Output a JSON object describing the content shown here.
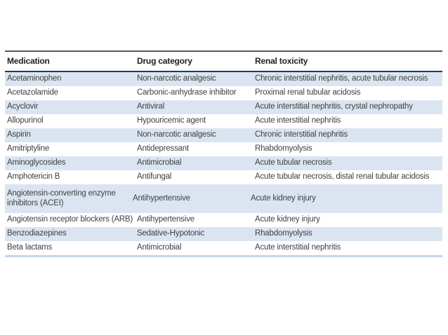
{
  "table": {
    "columns": [
      {
        "label": "Medication"
      },
      {
        "label": "Drug category"
      },
      {
        "label": "Renal toxicity"
      }
    ],
    "rows": [
      {
        "medication": "Acetaminophen",
        "category": "Non-narcotic analgesic",
        "toxicity": "Chronic interstitial nephritis, acute tubular necrosis"
      },
      {
        "medication": "Acetazolamide",
        "category": "Carbonic-anhydrase inhibitor",
        "toxicity": "Proximal renal tubular acidosis"
      },
      {
        "medication": "Acyclovir",
        "category": "Antiviral",
        "toxicity": "Acute interstitial nephritis, crystal nephropathy"
      },
      {
        "medication": "Allopurinol",
        "category": "Hypouricemic agent",
        "toxicity": "Acute interstitial nephritis"
      },
      {
        "medication": "Aspirin",
        "category": "Non-narcotic analgesic",
        "toxicity": "Chronic interstitial nephritis"
      },
      {
        "medication": "Amitriptyline",
        "category": "Antidepressant",
        "toxicity": "Rhabdomyolysis"
      },
      {
        "medication": "Aminoglycosides",
        "category": "Antimicrobial",
        "toxicity": "Acute tubular necrosis"
      },
      {
        "medication": "Amphotericin B",
        "category": "Antifungal",
        "toxicity": "Acute tubular necrosis, distal renal tubular acidosis"
      },
      {
        "medication": "Angiotensin-converting enzyme inhibitors (ACEI)",
        "category": "Antihypertensive",
        "toxicity": "Acute kidney injury"
      },
      {
        "medication": "Angiotensin receptor blockers (ARB)",
        "category": "Antihypertensive",
        "toxicity": "Acute kidney injury"
      },
      {
        "medication": "Benzodiazepines",
        "category": "Sedative-Hypotonic",
        "toxicity": "Rhabdomyolysis"
      },
      {
        "medication": "Beta lactams",
        "category": "Antimicrobial",
        "toxicity": "Acute interstitial nephritis"
      }
    ],
    "colors": {
      "row_alt": "#dbe5f1",
      "header_rule": "#203a5c",
      "top_rule": "#595959",
      "bottom_rule": "#c3d4e9",
      "body_text": "#3f3f3f",
      "header_text": "#1f1f1f"
    }
  }
}
